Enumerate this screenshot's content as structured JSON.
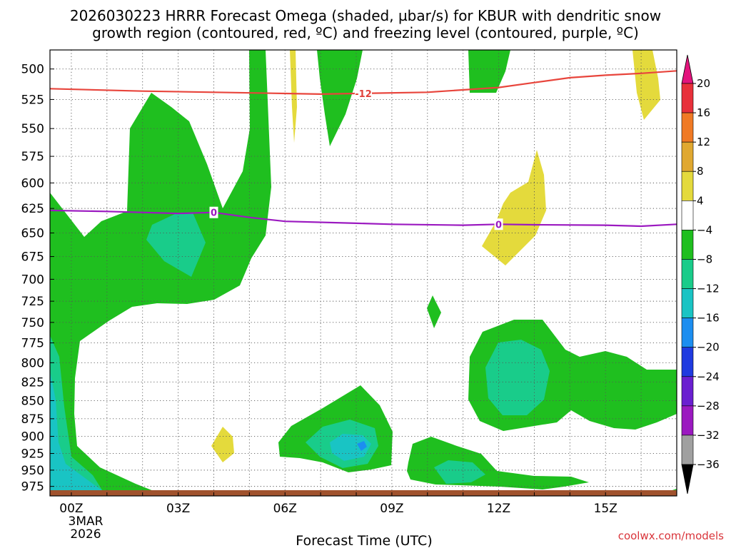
{
  "chart_data": {
    "type": "heatmap",
    "title_line1": "2026030223 HRRR Forecast Omega (shaded, µbar/s) for KBUR with dendritic snow",
    "title_line2": "growth region (contoured, red, ºC) and freezing level (contoured, purple, ºC)",
    "xlabel": "Forecast Time (UTC)",
    "ylabel": "",
    "credit": "coolwx.com/models",
    "x_ticks": [
      {
        "label": "00Z",
        "hour": 0
      },
      {
        "label": "03Z",
        "hour": 3
      },
      {
        "label": "06Z",
        "hour": 6
      },
      {
        "label": "09Z",
        "hour": 9
      },
      {
        "label": "12Z",
        "hour": 12
      },
      {
        "label": "15Z",
        "hour": 15
      }
    ],
    "x_date_label_1": "3MAR",
    "x_date_label_2": "2026",
    "xlim": [
      -0.6,
      17
    ],
    "y_ticks": [
      500,
      525,
      550,
      575,
      600,
      625,
      650,
      675,
      700,
      725,
      750,
      775,
      800,
      825,
      850,
      875,
      900,
      925,
      950,
      975
    ],
    "ylim": [
      485,
      990
    ],
    "y_scale": "log-pressure",
    "colorbar": {
      "levels": [
        "20",
        "16",
        "12",
        "8",
        "4",
        "−4",
        "−8",
        "−12",
        "−16",
        "−20",
        "−24",
        "−28",
        "−32",
        "−36"
      ],
      "colors": [
        "#e8303a",
        "#f07a24",
        "#e0a830",
        "#e4da3c",
        "#ffffff",
        "#1fbf1f",
        "#19cc8a",
        "#19c4c4",
        "#1c8ef0",
        "#1f3ae0",
        "#6a1fd0",
        "#9b19c0",
        "#a0a0a0"
      ],
      "top_arrow_color": "#e3147d",
      "bottom_arrow_color": "#000000"
    },
    "dendritic_contour": {
      "label": "-12",
      "color": "#e8453c",
      "points": [
        [
          -0.6,
          516
        ],
        [
          2,
          518
        ],
        [
          4,
          519
        ],
        [
          6,
          520
        ],
        [
          7,
          520.5
        ],
        [
          8,
          520
        ],
        [
          10,
          519
        ],
        [
          12,
          515
        ],
        [
          13,
          511
        ],
        [
          14,
          507
        ],
        [
          15,
          505
        ],
        [
          16,
          503.5
        ],
        [
          17,
          501.5
        ]
      ]
    },
    "freezing_level_contour": {
      "label": "0",
      "color": "#9b19c0",
      "points": [
        [
          -0.6,
          627
        ],
        [
          1,
          628
        ],
        [
          3,
          630
        ],
        [
          4,
          629
        ],
        [
          5,
          634
        ],
        [
          6,
          638
        ],
        [
          8,
          640
        ],
        [
          9,
          641
        ],
        [
          11,
          642
        ],
        [
          12,
          641
        ],
        [
          13,
          641.5
        ],
        [
          15,
          642
        ],
        [
          16,
          643
        ],
        [
          17,
          641
        ]
      ],
      "label_hours": [
        4,
        12
      ]
    }
  }
}
